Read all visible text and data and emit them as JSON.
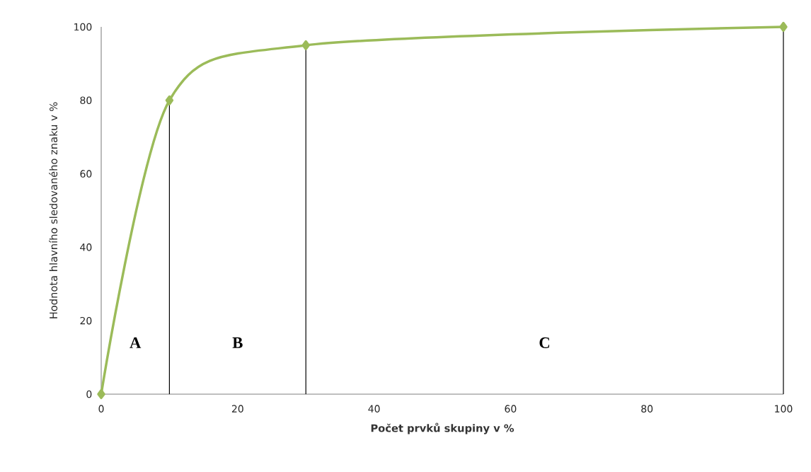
{
  "chart_data": {
    "type": "line",
    "xlabel": "Počet prvků skupiny v %",
    "ylabel": "Hodnota hlavního sledovaného znaku v %",
    "x": [
      0,
      10,
      30,
      100
    ],
    "series": [
      {
        "color": "#9bbb59",
        "values": [
          0,
          80,
          95,
          100
        ]
      }
    ],
    "marker": "diamond",
    "line_style": "solid",
    "grid": false,
    "xlim": [
      0,
      100
    ],
    "ylim": [
      0,
      100
    ],
    "xticks": [
      0,
      20,
      40,
      60,
      80,
      100
    ],
    "yticks": [
      0,
      20,
      40,
      60,
      80,
      100
    ],
    "ref_lines": [
      {
        "axis": "x",
        "value": 10,
        "color": "#000000"
      },
      {
        "axis": "x",
        "value": 30,
        "color": "#000000"
      },
      {
        "axis": "x",
        "value": 100,
        "color": "#000000"
      }
    ],
    "annotations": [
      "A",
      "B",
      "C"
    ]
  }
}
